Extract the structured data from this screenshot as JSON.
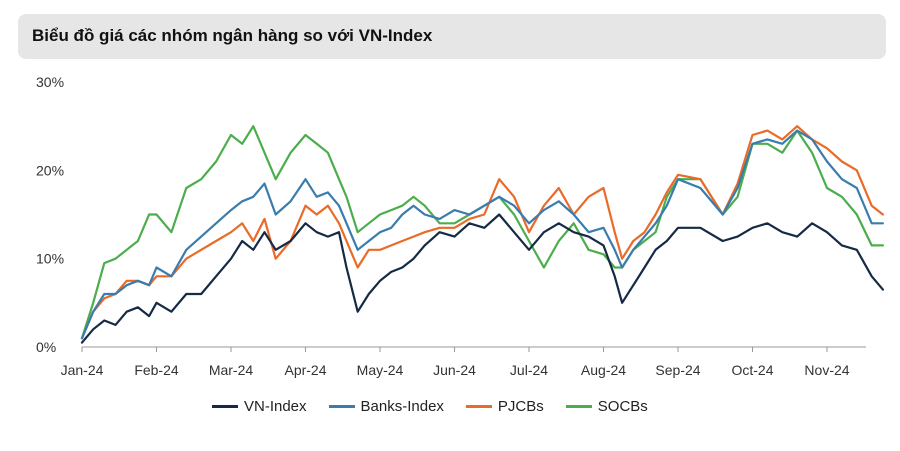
{
  "header": {
    "title": "Biểu đồ giá các nhóm ngân hàng so với VN-Index"
  },
  "chart_data": {
    "type": "line",
    "title": "Biểu đồ giá các nhóm ngân hàng so với VN-Index",
    "x_ticks": [
      "Jan-24",
      "Feb-24",
      "Mar-24",
      "Apr-24",
      "May-24",
      "Jun-24",
      "Jul-24",
      "Aug-24",
      "Sep-24",
      "Oct-24",
      "Nov-24"
    ],
    "y_ticks": [
      "0%",
      "10%",
      "20%",
      "30%"
    ],
    "ylim": [
      0,
      30
    ],
    "xlim": [
      0,
      10.75
    ],
    "x_unit": "months since Jan-24",
    "legend_position": "bottom",
    "series": [
      {
        "name": "VN-Index",
        "color": "#152a45",
        "points": [
          [
            0,
            0.5
          ],
          [
            0.15,
            2
          ],
          [
            0.3,
            3
          ],
          [
            0.45,
            2.5
          ],
          [
            0.6,
            4
          ],
          [
            0.75,
            4.5
          ],
          [
            0.9,
            3.5
          ],
          [
            1,
            5
          ],
          [
            1.2,
            4
          ],
          [
            1.4,
            6
          ],
          [
            1.6,
            6
          ],
          [
            1.8,
            8
          ],
          [
            2,
            10
          ],
          [
            2.15,
            12
          ],
          [
            2.3,
            11
          ],
          [
            2.45,
            13
          ],
          [
            2.6,
            11
          ],
          [
            2.8,
            12
          ],
          [
            3,
            14
          ],
          [
            3.15,
            13
          ],
          [
            3.3,
            12.5
          ],
          [
            3.45,
            13
          ],
          [
            3.55,
            9
          ],
          [
            3.7,
            4
          ],
          [
            3.85,
            6
          ],
          [
            4,
            7.5
          ],
          [
            4.15,
            8.5
          ],
          [
            4.3,
            9
          ],
          [
            4.45,
            10
          ],
          [
            4.6,
            11.5
          ],
          [
            4.8,
            13
          ],
          [
            5,
            12.5
          ],
          [
            5.2,
            14
          ],
          [
            5.4,
            13.5
          ],
          [
            5.6,
            15
          ],
          [
            5.8,
            13
          ],
          [
            6,
            11
          ],
          [
            6.2,
            13
          ],
          [
            6.4,
            14
          ],
          [
            6.6,
            13
          ],
          [
            6.8,
            12.5
          ],
          [
            7,
            11.5
          ],
          [
            7.15,
            8
          ],
          [
            7.25,
            5
          ],
          [
            7.4,
            7
          ],
          [
            7.55,
            9
          ],
          [
            7.7,
            11
          ],
          [
            7.85,
            12
          ],
          [
            8,
            13.5
          ],
          [
            8.3,
            13.5
          ],
          [
            8.6,
            12
          ],
          [
            8.8,
            12.5
          ],
          [
            9,
            13.5
          ],
          [
            9.2,
            14
          ],
          [
            9.4,
            13
          ],
          [
            9.6,
            12.5
          ],
          [
            9.8,
            14
          ],
          [
            10,
            13
          ],
          [
            10.2,
            11.5
          ],
          [
            10.4,
            11
          ],
          [
            10.6,
            8
          ],
          [
            10.75,
            6.5
          ]
        ]
      },
      {
        "name": "Banks-Index",
        "color": "#3a7cae",
        "points": [
          [
            0,
            1
          ],
          [
            0.15,
            4
          ],
          [
            0.3,
            6
          ],
          [
            0.45,
            6
          ],
          [
            0.6,
            7
          ],
          [
            0.75,
            7.5
          ],
          [
            0.9,
            7
          ],
          [
            1,
            9
          ],
          [
            1.2,
            8
          ],
          [
            1.4,
            11
          ],
          [
            1.6,
            12.5
          ],
          [
            1.8,
            14
          ],
          [
            2,
            15.5
          ],
          [
            2.15,
            16.5
          ],
          [
            2.3,
            17
          ],
          [
            2.45,
            18.5
          ],
          [
            2.6,
            15
          ],
          [
            2.8,
            16.5
          ],
          [
            3,
            19
          ],
          [
            3.15,
            17
          ],
          [
            3.3,
            17.5
          ],
          [
            3.45,
            16
          ],
          [
            3.55,
            14
          ],
          [
            3.7,
            11
          ],
          [
            3.85,
            12
          ],
          [
            4,
            13
          ],
          [
            4.15,
            13.5
          ],
          [
            4.3,
            15
          ],
          [
            4.45,
            16
          ],
          [
            4.6,
            15
          ],
          [
            4.8,
            14.5
          ],
          [
            5,
            15.5
          ],
          [
            5.2,
            15
          ],
          [
            5.4,
            16
          ],
          [
            5.6,
            17
          ],
          [
            5.8,
            16
          ],
          [
            6,
            14
          ],
          [
            6.2,
            15.5
          ],
          [
            6.4,
            16.5
          ],
          [
            6.6,
            15
          ],
          [
            6.8,
            13
          ],
          [
            7,
            13.5
          ],
          [
            7.15,
            11
          ],
          [
            7.25,
            9
          ],
          [
            7.4,
            11
          ],
          [
            7.55,
            12.5
          ],
          [
            7.7,
            14
          ],
          [
            7.85,
            16
          ],
          [
            8,
            19
          ],
          [
            8.3,
            18
          ],
          [
            8.6,
            15
          ],
          [
            8.8,
            18
          ],
          [
            9,
            23
          ],
          [
            9.2,
            23.5
          ],
          [
            9.4,
            23
          ],
          [
            9.6,
            24.5
          ],
          [
            9.8,
            23.5
          ],
          [
            10,
            21
          ],
          [
            10.2,
            19
          ],
          [
            10.4,
            18
          ],
          [
            10.6,
            14
          ],
          [
            10.75,
            14
          ]
        ]
      },
      {
        "name": "PJCBs",
        "color": "#ea6a28",
        "points": [
          [
            0,
            1
          ],
          [
            0.15,
            4
          ],
          [
            0.3,
            5.5
          ],
          [
            0.45,
            6
          ],
          [
            0.6,
            7.5
          ],
          [
            0.75,
            7.5
          ],
          [
            0.9,
            7
          ],
          [
            1,
            8
          ],
          [
            1.2,
            8
          ],
          [
            1.4,
            10
          ],
          [
            1.6,
            11
          ],
          [
            1.8,
            12
          ],
          [
            2,
            13
          ],
          [
            2.15,
            14
          ],
          [
            2.3,
            12
          ],
          [
            2.45,
            14.5
          ],
          [
            2.6,
            10
          ],
          [
            2.8,
            12
          ],
          [
            3,
            16
          ],
          [
            3.15,
            15
          ],
          [
            3.3,
            16
          ],
          [
            3.45,
            14
          ],
          [
            3.55,
            12
          ],
          [
            3.7,
            9
          ],
          [
            3.85,
            11
          ],
          [
            4,
            11
          ],
          [
            4.15,
            11.5
          ],
          [
            4.3,
            12
          ],
          [
            4.45,
            12.5
          ],
          [
            4.6,
            13
          ],
          [
            4.8,
            13.5
          ],
          [
            5,
            13.5
          ],
          [
            5.2,
            14.5
          ],
          [
            5.4,
            15
          ],
          [
            5.6,
            19
          ],
          [
            5.8,
            17
          ],
          [
            6,
            13
          ],
          [
            6.2,
            16
          ],
          [
            6.4,
            18
          ],
          [
            6.6,
            15
          ],
          [
            6.8,
            17
          ],
          [
            7,
            18
          ],
          [
            7.15,
            13
          ],
          [
            7.25,
            10
          ],
          [
            7.4,
            12
          ],
          [
            7.55,
            13
          ],
          [
            7.7,
            15
          ],
          [
            7.85,
            17.5
          ],
          [
            8,
            19.5
          ],
          [
            8.3,
            19
          ],
          [
            8.6,
            15
          ],
          [
            8.8,
            18.5
          ],
          [
            9,
            24
          ],
          [
            9.2,
            24.5
          ],
          [
            9.4,
            23.5
          ],
          [
            9.6,
            25
          ],
          [
            9.8,
            23.5
          ],
          [
            10,
            22.5
          ],
          [
            10.2,
            21
          ],
          [
            10.4,
            20
          ],
          [
            10.6,
            16
          ],
          [
            10.75,
            15
          ]
        ]
      },
      {
        "name": "SOCBs",
        "color": "#4cad4c",
        "points": [
          [
            0,
            1
          ],
          [
            0.15,
            5
          ],
          [
            0.3,
            9.5
          ],
          [
            0.45,
            10
          ],
          [
            0.6,
            11
          ],
          [
            0.75,
            12
          ],
          [
            0.9,
            15
          ],
          [
            1,
            15
          ],
          [
            1.2,
            13
          ],
          [
            1.4,
            18
          ],
          [
            1.6,
            19
          ],
          [
            1.8,
            21
          ],
          [
            2,
            24
          ],
          [
            2.15,
            23
          ],
          [
            2.3,
            25
          ],
          [
            2.45,
            22
          ],
          [
            2.6,
            19
          ],
          [
            2.8,
            22
          ],
          [
            3,
            24
          ],
          [
            3.15,
            23
          ],
          [
            3.3,
            22
          ],
          [
            3.45,
            19
          ],
          [
            3.55,
            17
          ],
          [
            3.7,
            13
          ],
          [
            3.85,
            14
          ],
          [
            4,
            15
          ],
          [
            4.15,
            15.5
          ],
          [
            4.3,
            16
          ],
          [
            4.45,
            17
          ],
          [
            4.6,
            16
          ],
          [
            4.8,
            14
          ],
          [
            5,
            14
          ],
          [
            5.2,
            15
          ],
          [
            5.4,
            16
          ],
          [
            5.6,
            17
          ],
          [
            5.8,
            15
          ],
          [
            6,
            12
          ],
          [
            6.2,
            9
          ],
          [
            6.4,
            12
          ],
          [
            6.6,
            14
          ],
          [
            6.8,
            11
          ],
          [
            7,
            10.5
          ],
          [
            7.15,
            9
          ],
          [
            7.25,
            9
          ],
          [
            7.4,
            11
          ],
          [
            7.55,
            12
          ],
          [
            7.7,
            13
          ],
          [
            7.85,
            17
          ],
          [
            8,
            19
          ],
          [
            8.3,
            19
          ],
          [
            8.6,
            15
          ],
          [
            8.8,
            17
          ],
          [
            9,
            23
          ],
          [
            9.2,
            23
          ],
          [
            9.4,
            22
          ],
          [
            9.6,
            24.5
          ],
          [
            9.8,
            22
          ],
          [
            10,
            18
          ],
          [
            10.2,
            17
          ],
          [
            10.4,
            15
          ],
          [
            10.6,
            11.5
          ],
          [
            10.75,
            11.5
          ]
        ]
      }
    ]
  },
  "legend": {
    "items": [
      "VN-Index",
      "Banks-Index",
      "PJCBs",
      "SOCBs"
    ]
  }
}
